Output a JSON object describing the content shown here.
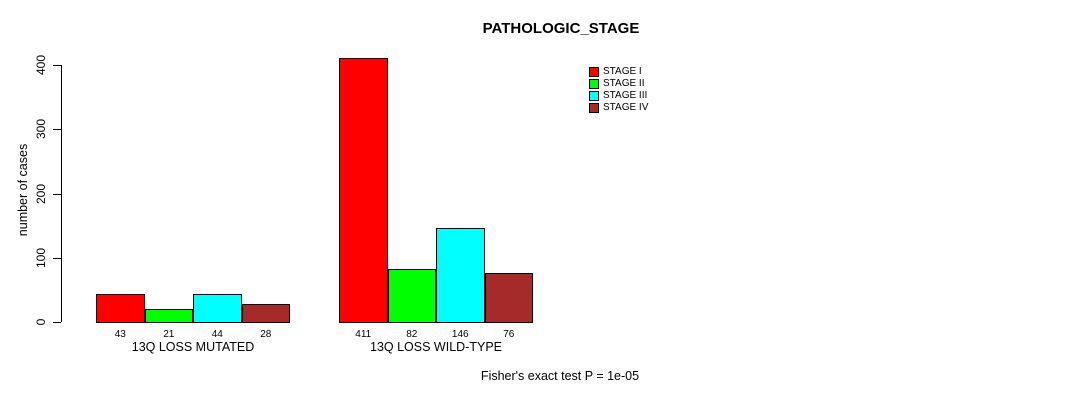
{
  "chart_data": {
    "type": "bar",
    "title": "PATHOLOGIC_STAGE",
    "ylabel": "number of cases",
    "xlabel": "",
    "categories": [
      "13Q LOSS MUTATED",
      "13Q LOSS WILD-TYPE"
    ],
    "series": [
      {
        "name": "STAGE I",
        "color": "#ff0000",
        "values": [
          43,
          411
        ]
      },
      {
        "name": "STAGE II",
        "color": "#00ff00",
        "values": [
          21,
          82
        ]
      },
      {
        "name": "STAGE III",
        "color": "#00ffff",
        "values": [
          44,
          146
        ]
      },
      {
        "name": "STAGE IV",
        "color": "#a52a2a",
        "values": [
          28,
          76
        ]
      }
    ],
    "bar_value_labels": [
      [
        43,
        21,
        44,
        28
      ],
      [
        411,
        82,
        146,
        76
      ]
    ],
    "ylim": [
      0,
      400
    ],
    "yticks": [
      0,
      100,
      200,
      300,
      400
    ],
    "grid": false,
    "legend_position": "top-right",
    "annotation": "Fisher's exact test P = 1e-05",
    "bar_border_color": "#000000",
    "background_color": "#ffffff"
  }
}
